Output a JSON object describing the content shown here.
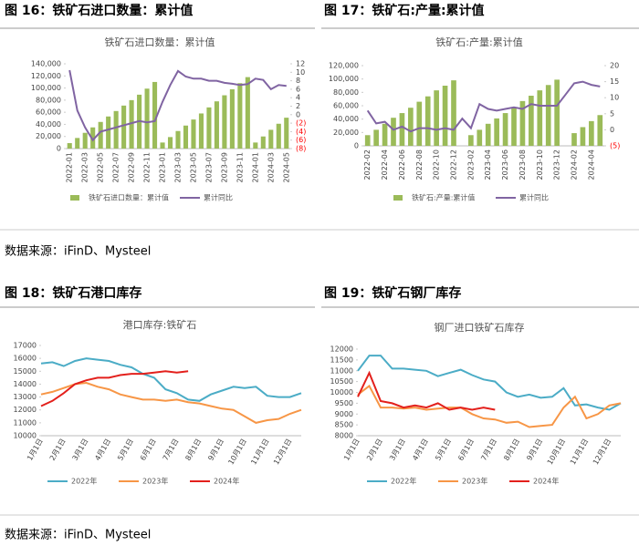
{
  "chart_data": [
    {
      "type": "combo",
      "caption": "图 16：铁矿石进口数量：累计值",
      "title": "铁矿石进口数量：累计值",
      "categories": [
        "2022-01",
        null,
        "2022-03",
        null,
        "2022-05",
        null,
        "2022-07",
        null,
        "2022-09",
        null,
        "2022-11",
        null,
        "2023-01",
        null,
        "2023-03",
        null,
        "2023-05",
        null,
        "2023-07",
        null,
        "2023-09",
        null,
        "2023-11",
        null,
        "2024-01",
        null,
        "2024-03",
        null,
        "2024-05"
      ],
      "series": [
        {
          "name": "铁矿石进口数量：累计值",
          "type": "bar",
          "color": "#9bbb59",
          "values": [
            9000,
            17500,
            26000,
            35000,
            44000,
            53000,
            62000,
            71000,
            80000,
            89000,
            99000,
            110000,
            10000,
            19000,
            29000,
            38000,
            48000,
            58000,
            68000,
            78000,
            88000,
            98000,
            108000,
            118000,
            10000,
            20000,
            31000,
            41000,
            51000
          ]
        },
        {
          "name": "累计同比",
          "type": "line",
          "axis": "y2",
          "color": "#8064a2",
          "values": [
            10.5,
            1,
            -3,
            -6,
            -4,
            -3.5,
            -3,
            -2.5,
            -2,
            -1.5,
            -1.8,
            -1.5,
            3,
            7,
            10.3,
            9,
            8.5,
            8.5,
            8,
            8,
            7.5,
            7.3,
            7,
            7.2,
            8.5,
            8.2,
            6,
            7,
            6.8
          ]
        }
      ],
      "ylim": [
        0,
        140000
      ],
      "yticks": [
        0,
        {
          "value": 20000,
          "label": "20,000"
        },
        {
          "value": 40000,
          "label": "40,000"
        },
        {
          "value": 60000,
          "label": "60,000"
        },
        {
          "value": 80000,
          "label": "80,000"
        },
        {
          "value": 100000,
          "label": "100,000"
        },
        {
          "value": 120000,
          "label": "120,000"
        },
        {
          "value": 140000,
          "label": "140,000"
        }
      ],
      "y2lim": [
        -8,
        12
      ],
      "y2ticks": [
        {
          "value": -8,
          "label": "(8)"
        },
        {
          "value": -6,
          "label": "(6)"
        },
        {
          "value": -4,
          "label": "(4)"
        },
        {
          "value": -2,
          "label": "(2)"
        },
        0,
        2,
        4,
        6,
        8,
        10,
        12
      ],
      "negative_tick_color": "#ff0000"
    },
    {
      "type": "combo",
      "caption": "图 17：铁矿石:产量:累计值",
      "title": "铁矿石:产量:累计值",
      "categories": [
        "2022-02",
        null,
        "2022-04",
        null,
        "2022-06",
        null,
        "2022-08",
        null,
        "2022-10",
        null,
        "2022-12",
        null,
        "2023-02",
        null,
        "2023-04",
        null,
        "2023-06",
        null,
        "2023-08",
        null,
        "2023-10",
        null,
        "2023-12",
        null,
        "2024-02",
        null,
        "2024-04",
        null
      ],
      "series": [
        {
          "name": "铁矿石:产量:累计值",
          "type": "bar",
          "color": "#9bbb59",
          "values": [
            16000,
            24000,
            33000,
            42000,
            49000,
            57000,
            66000,
            74000,
            83000,
            90000,
            98000,
            null,
            16000,
            24000,
            33000,
            41000,
            49000,
            58000,
            67000,
            75000,
            83000,
            91000,
            99000,
            null,
            19000,
            28000,
            37000,
            46000
          ]
        },
        {
          "name": "累计同比",
          "type": "line",
          "axis": "y2",
          "color": "#8064a2",
          "values": [
            6,
            2,
            2.5,
            0,
            1,
            -0.5,
            0.5,
            0.5,
            0,
            0.5,
            0,
            3.5,
            0.5,
            8,
            6.5,
            6,
            6.5,
            7,
            6.5,
            8,
            7.5,
            7.5,
            7.5,
            11,
            14.5,
            15,
            14,
            13.5
          ]
        }
      ],
      "ylim": [
        0,
        120000
      ],
      "yticks": [
        0,
        {
          "value": 20000,
          "label": "20,000"
        },
        {
          "value": 40000,
          "label": "40,000"
        },
        {
          "value": 60000,
          "label": "60,000"
        },
        {
          "value": 80000,
          "label": "80,000"
        },
        {
          "value": 100000,
          "label": "100,000"
        },
        {
          "value": 120000,
          "label": "120,000"
        }
      ],
      "y2lim": [
        -5,
        20
      ],
      "y2ticks": [
        {
          "value": -5,
          "label": "(5)"
        },
        0,
        5,
        10,
        15,
        20
      ],
      "negative_tick_color": "#ff0000"
    },
    {
      "type": "line",
      "caption": "图 18：铁矿石港口库存",
      "title": "港口库存:铁矿石",
      "categories": [
        "1月1日",
        null,
        "2月1日",
        null,
        "3月1日",
        null,
        "4月1日",
        null,
        "5月1日",
        null,
        "6月1日",
        null,
        "7月1日",
        null,
        "8月1日",
        null,
        "9月1日",
        null,
        "10月1日",
        null,
        "11月1日",
        null,
        "12月1日",
        null
      ],
      "series": [
        {
          "name": "2022年",
          "color": "#4bacc6",
          "values": [
            15600,
            15700,
            15400,
            15800,
            16000,
            15900,
            15800,
            15500,
            15300,
            14800,
            14500,
            13600,
            13300,
            12800,
            12700,
            13200,
            13500,
            13800,
            13700,
            13800,
            13100,
            13000,
            13000,
            13300
          ]
        },
        {
          "name": "2023年",
          "color": "#f79646",
          "values": [
            13200,
            13400,
            13700,
            14000,
            14100,
            13800,
            13600,
            13200,
            13000,
            12800,
            12800,
            12700,
            12800,
            12600,
            12500,
            12300,
            12100,
            12000,
            11500,
            11000,
            11200,
            11300,
            11700,
            12000
          ]
        },
        {
          "name": "2024年",
          "color": "#e3201c",
          "values": [
            12300,
            12700,
            13300,
            14000,
            14300,
            14500,
            14500,
            14700,
            14800,
            14800,
            14900,
            15000,
            14900,
            15000,
            null,
            null,
            null,
            null,
            null,
            null,
            null,
            null,
            null,
            null
          ]
        }
      ],
      "ylim": [
        10000,
        17000
      ],
      "yticks": [
        10000,
        11000,
        12000,
        13000,
        14000,
        15000,
        16000,
        17000
      ]
    },
    {
      "type": "line",
      "caption": "图 19：铁矿石钢厂库存",
      "title": "钢厂进口铁矿石库存",
      "categories": [
        "1月1日",
        null,
        "2月1日",
        null,
        "3月1日",
        null,
        "4月1日",
        null,
        "5月1日",
        null,
        "6月1日",
        null,
        "7月1日",
        null,
        "8月1日",
        null,
        "9月1日",
        null,
        "10月1日",
        null,
        "11月1日",
        null,
        "12月1日",
        null
      ],
      "series": [
        {
          "name": "2022年",
          "color": "#4bacc6",
          "values": [
            11000,
            11700,
            11700,
            11100,
            11100,
            11050,
            11000,
            10750,
            10900,
            11050,
            10800,
            10600,
            10500,
            10000,
            9800,
            9900,
            9750,
            9800,
            10200,
            9400,
            9450,
            9300,
            9200,
            9500
          ]
        },
        {
          "name": "2023年",
          "color": "#f79646",
          "values": [
            9900,
            10300,
            9300,
            9300,
            9250,
            9300,
            9200,
            9250,
            9300,
            9300,
            9000,
            8800,
            8750,
            8600,
            8650,
            8400,
            8450,
            8500,
            9300,
            9800,
            8800,
            9000,
            9400,
            9500
          ]
        },
        {
          "name": "2024年",
          "color": "#e3201c",
          "values": [
            9800,
            10900,
            9600,
            9500,
            9300,
            9400,
            9300,
            9500,
            9200,
            9300,
            9200,
            9300,
            9200,
            null,
            null,
            null,
            null,
            null,
            null,
            null,
            null,
            null,
            null,
            null
          ]
        }
      ],
      "ylim": [
        8000,
        12000
      ],
      "yticks": [
        8000,
        8500,
        9000,
        9500,
        10000,
        10500,
        11000,
        11500,
        12000
      ]
    }
  ],
  "sources": [
    "数据来源：iFinD、Mysteel",
    "数据来源：iFinD、Mysteel"
  ]
}
